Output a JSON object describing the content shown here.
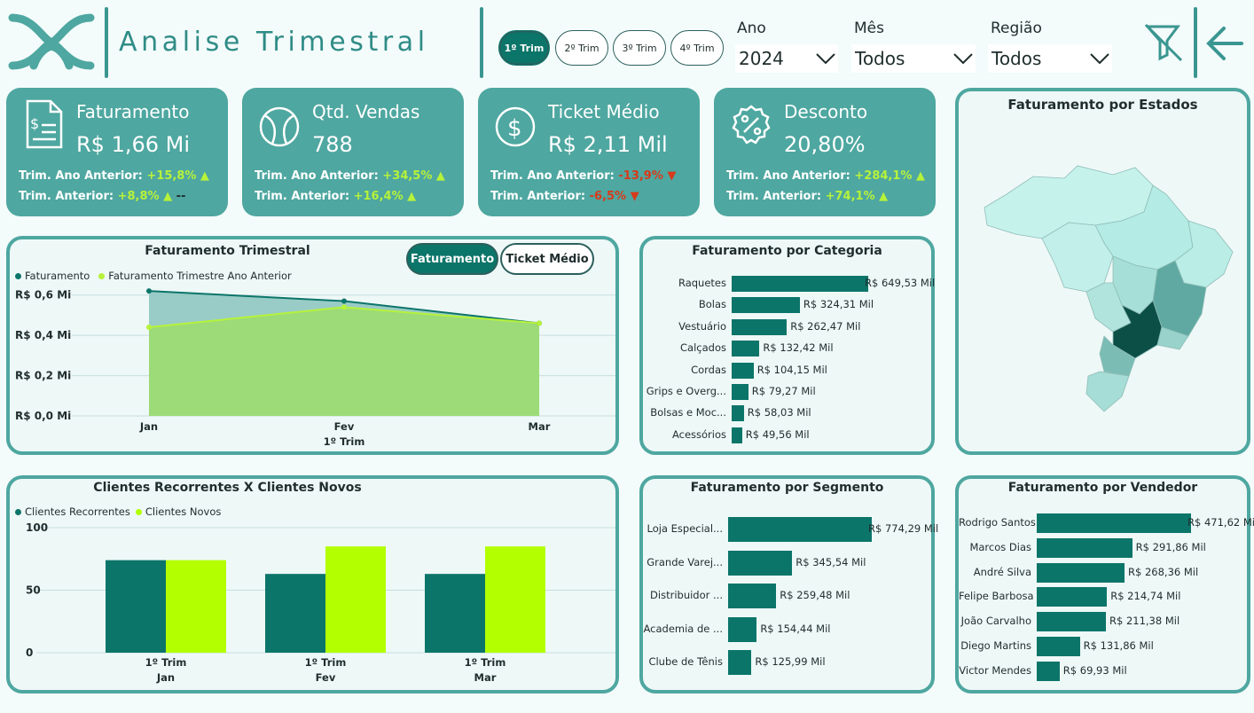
{
  "header": {
    "title": "Analise Trimestral",
    "quarters": [
      "1º Trim",
      "2º Trim",
      "3º Trim",
      "4º Trim"
    ],
    "active_quarter": "1º Trim",
    "slicers": [
      {
        "label": "Ano",
        "value": "2024"
      },
      {
        "label": "Mês",
        "value": "Todos"
      },
      {
        "label": "Região",
        "value": "Todos"
      }
    ],
    "accent": "#0c7569",
    "card_color": "#4ea7a0"
  },
  "kpis": [
    {
      "title": "Faturamento",
      "value": "R$ 1,66 Mi",
      "icon": "invoice-icon",
      "yoy_label": "Trim. Ano Anterior: ",
      "yoy_value": "+15,8%",
      "yoy_dir": "up",
      "qoq_label": "Trim. Anterior: ",
      "qoq_value": "+8,8%",
      "qoq_dir": "up",
      "qoq_suffix": "--"
    },
    {
      "title": "Qtd. Vendas",
      "value": "788",
      "icon": "tennis-ball-icon",
      "yoy_label": "Trim. Ano Anterior: ",
      "yoy_value": "+34,5%",
      "yoy_dir": "up",
      "qoq_label": "Trim. Anterior: ",
      "qoq_value": "+16,4%",
      "qoq_dir": "up",
      "qoq_suffix": ""
    },
    {
      "title": "Ticket Médio",
      "value": "R$ 2,11 Mil",
      "icon": "dollar-icon",
      "yoy_label": "Trim. Ano Anterior: ",
      "yoy_value": "-13,9%",
      "yoy_dir": "down",
      "qoq_label": "Trim. Anterior: ",
      "qoq_value": "-6,5%",
      "qoq_dir": "down",
      "qoq_suffix": ""
    },
    {
      "title": "Desconto",
      "value": "20,80%",
      "icon": "discount-icon",
      "yoy_label": "Trim. Ano Anterior: ",
      "yoy_value": "+284,1%",
      "yoy_dir": "up",
      "qoq_label": "Trim. Anterior: ",
      "qoq_value": "+74,1%",
      "qoq_dir": "up",
      "qoq_suffix": ""
    }
  ],
  "trimestral": {
    "title": "Faturamento Trimestral",
    "toggle_a": "Faturamento",
    "toggle_b": "Ticket Médio",
    "legend_a": "Faturamento",
    "legend_b": "Faturamento Trimestre Ano Anterior",
    "x_sub": "1º Trim"
  },
  "clientes": {
    "title": "Clientes Recorrentes X Clientes Novos",
    "legend_a": "Clientes Recorrentes",
    "legend_b": "Clientes Novos"
  },
  "categoria": {
    "title": "Faturamento por Categoria"
  },
  "segmento": {
    "title": "Faturamento por Segmento"
  },
  "vendedor": {
    "title": "Faturamento por Vendedor"
  },
  "estados": {
    "title": "Faturamento por Estados"
  },
  "chart_data": [
    {
      "type": "area",
      "title": "Faturamento Trimestral",
      "x": [
        "Jan",
        "Fev",
        "Mar"
      ],
      "x_group": "1º Trim",
      "yticks": [
        "R$ 0,0 Mi",
        "R$ 0,2 Mi",
        "R$ 0,4 Mi",
        "R$ 0,6 Mi"
      ],
      "ylim": [
        0,
        0.7
      ],
      "series": [
        {
          "name": "Faturamento",
          "values": [
            0.62,
            0.57,
            0.46
          ],
          "color": "#0c7569"
        },
        {
          "name": "Faturamento Trimestre Ano Anterior",
          "values": [
            0.44,
            0.54,
            0.46
          ],
          "color": "#b7f23b"
        }
      ]
    },
    {
      "type": "bar",
      "title": "Clientes Recorrentes X Clientes Novos",
      "categories": [
        "Jan",
        "Fev",
        "Mar"
      ],
      "category_group": "1º Trim",
      "yticks": [
        "0",
        "50",
        "100"
      ],
      "ylim": [
        0,
        100
      ],
      "series": [
        {
          "name": "Clientes Recorrentes",
          "values": [
            74,
            63,
            63
          ],
          "color": "#0c7569"
        },
        {
          "name": "Clientes Novos",
          "values": [
            74,
            85,
            85
          ],
          "color": "#b3ff00"
        }
      ]
    },
    {
      "type": "bar",
      "title": "Faturamento por Categoria",
      "categories": [
        "Raquetes",
        "Bolas",
        "Vestuário",
        "Calçados",
        "Cordas",
        "Grips e Overg...",
        "Bolsas e Moc...",
        "Acessórios"
      ],
      "values": [
        649.53,
        324.31,
        262.47,
        132.42,
        104.15,
        79.27,
        58.03,
        49.56
      ],
      "labels": [
        "R$ 649,53 Mil",
        "R$ 324,31 Mil",
        "R$ 262,47 Mil",
        "R$ 132,42 Mil",
        "R$ 104,15 Mil",
        "R$ 79,27 Mil",
        "R$ 58,03 Mil",
        "R$ 49,56 Mil"
      ]
    },
    {
      "type": "bar",
      "title": "Faturamento por Segmento",
      "categories": [
        "Loja Especial...",
        "Grande Varej...",
        "Distribuidor ...",
        "Academia de ...",
        "Clube de Tênis"
      ],
      "values": [
        774.29,
        345.54,
        259.48,
        154.44,
        125.99
      ],
      "labels": [
        "R$ 774,29 Mil",
        "R$ 345,54 Mil",
        "R$ 259,48 Mil",
        "R$ 154,44 Mil",
        "R$ 125,99 Mil"
      ]
    },
    {
      "type": "bar",
      "title": "Faturamento por Vendedor",
      "categories": [
        "Rodrigo Santos",
        "Marcos Dias",
        "André Silva",
        "Felipe Barbosa",
        "João Carvalho",
        "Diego Martins",
        "Victor Mendes"
      ],
      "values": [
        471.62,
        291.86,
        268.36,
        214.74,
        211.38,
        131.86,
        69.93
      ],
      "labels": [
        "R$ 471,62 Mil",
        "R$ 291,86 Mil",
        "R$ 268,36 Mil",
        "R$ 214,74 Mil",
        "R$ 211,38 Mil",
        "R$ 131,86 Mil",
        "R$ 69,93 Mil"
      ]
    }
  ]
}
